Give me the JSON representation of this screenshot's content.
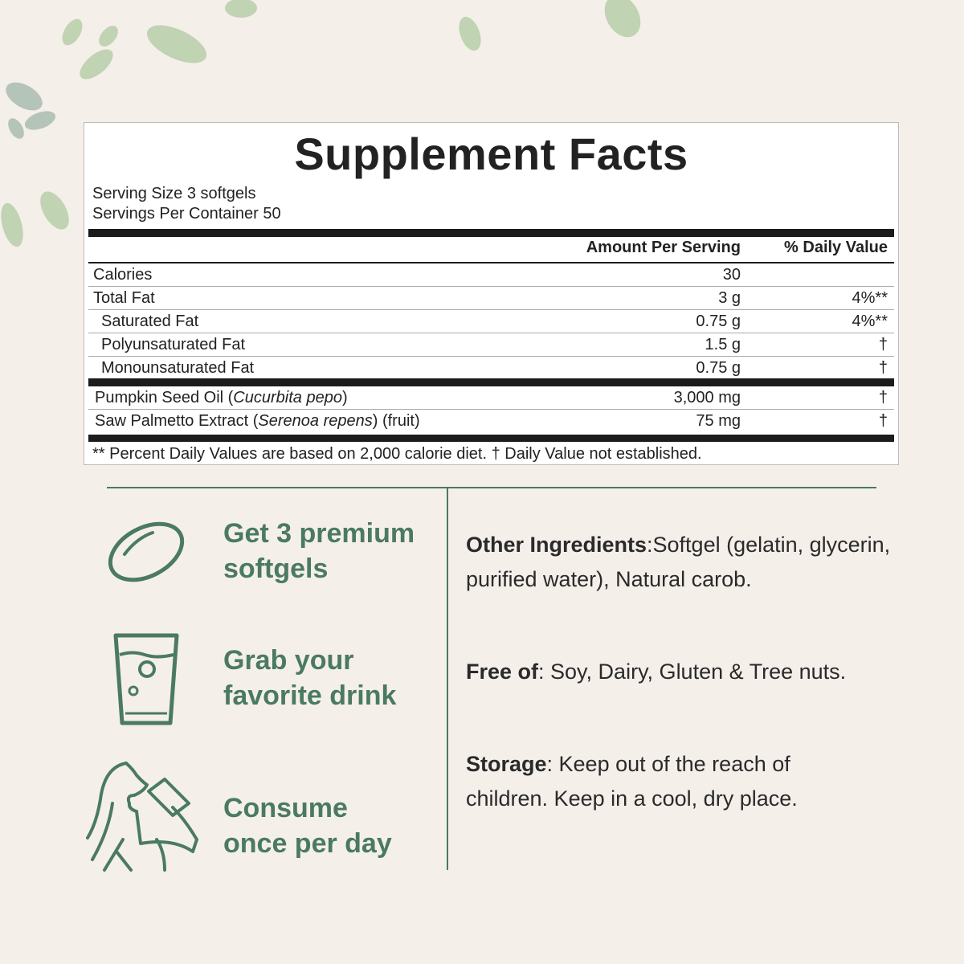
{
  "colors": {
    "background": "#f5efea",
    "accent_green": "#4a7a62",
    "leaf": "#a9c79a"
  },
  "facts": {
    "title": "Supplement Facts",
    "serving_size": "Serving Size 3 softgels",
    "servings_per_container": "Servings Per Container 50",
    "col_amount": "Amount Per Serving",
    "col_daily": "% Daily Value",
    "rows": [
      {
        "name": "Calories",
        "amount": "30",
        "daily": ""
      },
      {
        "name": "Total Fat",
        "amount": "3 g",
        "daily": "4%**"
      },
      {
        "name": "Saturated Fat",
        "amount": "0.75 g",
        "daily": "4%**"
      },
      {
        "name": "Polyunsaturated Fat",
        "amount": "1.5 g",
        "daily": "†"
      },
      {
        "name": "Monounsaturated Fat",
        "amount": "0.75 g",
        "daily": "†"
      }
    ],
    "ingredients": [
      {
        "name": "Pumpkin Seed Oil (",
        "latin": "Cucurbita pepo",
        "suffix": ")",
        "amount": "3,000 mg",
        "daily": "†"
      },
      {
        "name": "Saw Palmetto Extract (",
        "latin": "Serenoa repens",
        "suffix": ") (fruit)",
        "amount": "75 mg",
        "daily": "†"
      }
    ],
    "footnote": "** Percent Daily Values are based on 2,000 calorie diet. † Daily Value not established."
  },
  "steps": [
    {
      "icon": "softgel-icon",
      "line1": "Get 3 premium",
      "line2": "softgels"
    },
    {
      "icon": "glass-icon",
      "line1": "Grab your",
      "line2": "favorite drink"
    },
    {
      "icon": "woman-drinking-icon",
      "line1": "Consume",
      "line2": "once per day"
    }
  ],
  "info": [
    {
      "label": "Other Ingredients",
      "text": ":Softgel (gelatin, glycerin, purified water), Natural carob."
    },
    {
      "label": "Free of",
      "text": ": Soy, Dairy, Gluten & Tree nuts."
    },
    {
      "label": "Storage",
      "text": ": Keep out of the reach of children. Keep in a cool, dry place."
    }
  ]
}
